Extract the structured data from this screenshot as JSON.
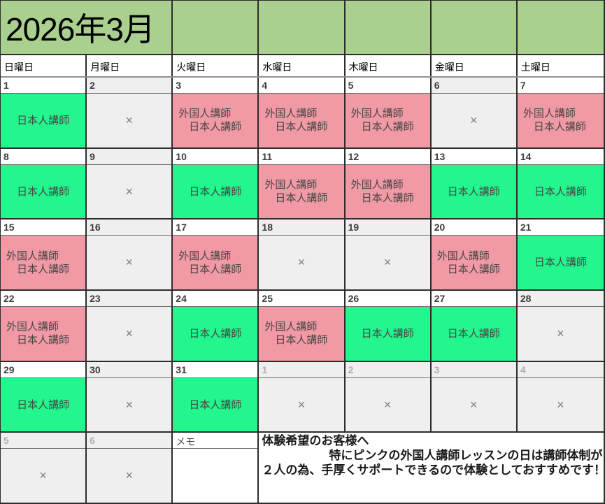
{
  "calendar": {
    "title": "2026年3月",
    "weekday_headers": [
      "日曜日",
      "月曜日",
      "火曜日",
      "水曜日",
      "木曜日",
      "金曜日",
      "土曜日"
    ],
    "weeks": [
      {
        "days": [
          {
            "number": "1",
            "type": "japanese",
            "outside": false
          },
          {
            "number": "2",
            "type": "closed",
            "outside": false
          },
          {
            "number": "3",
            "type": "both",
            "outside": false
          },
          {
            "number": "4",
            "type": "both",
            "outside": false
          },
          {
            "number": "5",
            "type": "both",
            "outside": false
          },
          {
            "number": "6",
            "type": "closed",
            "outside": false
          },
          {
            "number": "7",
            "type": "both",
            "outside": false
          }
        ]
      },
      {
        "days": [
          {
            "number": "8",
            "type": "japanese",
            "outside": false
          },
          {
            "number": "9",
            "type": "closed",
            "outside": false
          },
          {
            "number": "10",
            "type": "japanese",
            "outside": false
          },
          {
            "number": "11",
            "type": "both",
            "outside": false
          },
          {
            "number": "12",
            "type": "both",
            "outside": false
          },
          {
            "number": "13",
            "type": "japanese",
            "outside": false
          },
          {
            "number": "14",
            "type": "japanese",
            "outside": false
          }
        ]
      },
      {
        "days": [
          {
            "number": "15",
            "type": "both",
            "outside": false
          },
          {
            "number": "16",
            "type": "closed",
            "outside": false
          },
          {
            "number": "17",
            "type": "both",
            "outside": false
          },
          {
            "number": "18",
            "type": "closed",
            "outside": false
          },
          {
            "number": "19",
            "type": "closed",
            "outside": false
          },
          {
            "number": "20",
            "type": "both",
            "outside": false
          },
          {
            "number": "21",
            "type": "japanese",
            "outside": false
          }
        ]
      },
      {
        "days": [
          {
            "number": "22",
            "type": "both",
            "outside": false
          },
          {
            "number": "23",
            "type": "closed",
            "outside": false
          },
          {
            "number": "24",
            "type": "japanese",
            "outside": false
          },
          {
            "number": "25",
            "type": "both",
            "outside": false
          },
          {
            "number": "26",
            "type": "japanese",
            "outside": false
          },
          {
            "number": "27",
            "type": "japanese",
            "outside": false
          },
          {
            "number": "28",
            "type": "closed",
            "outside": false
          }
        ]
      },
      {
        "days": [
          {
            "number": "29",
            "type": "japanese",
            "outside": false
          },
          {
            "number": "30",
            "type": "closed",
            "outside": false
          },
          {
            "number": "31",
            "type": "japanese",
            "outside": false
          },
          {
            "number": "1",
            "type": "closed",
            "outside": true
          },
          {
            "number": "2",
            "type": "closed",
            "outside": true
          },
          {
            "number": "3",
            "type": "closed",
            "outside": true
          },
          {
            "number": "4",
            "type": "closed",
            "outside": true
          }
        ]
      },
      {
        "days": [
          {
            "number": "5",
            "type": "closed",
            "outside": true
          },
          {
            "number": "6",
            "type": "closed",
            "outside": true
          },
          {
            "number": "",
            "type": "memo",
            "outside": false
          },
          {
            "number": "",
            "type": "note",
            "outside": false,
            "span": 4
          }
        ]
      }
    ]
  },
  "labels": {
    "japanese": "日本人講師",
    "foreign": "外国人講師",
    "closed_mark": "×"
  },
  "memo_label": "メモ",
  "note": {
    "line1": "体験希望のお客様へ",
    "line2": "特にピンクの外国人講師レッスンの日は講師体制が",
    "line3": "２人の為、手厚くサポートできるので体験としておすすめです！"
  },
  "colors": {
    "header_green": "#A9D08E",
    "lesson_green": "#22F68C",
    "lesson_pink": "#F199A4",
    "closed_gray": "#EFEFEF",
    "border_dark": "#2D2D2D",
    "border_gray": "#919191",
    "day_number": "#3D3D3D",
    "outside_day_number": "#AFAFAF",
    "closed_mark_color": "#7F7F7F",
    "lesson_text": "#474747",
    "note_text": "#1A1A1A"
  }
}
